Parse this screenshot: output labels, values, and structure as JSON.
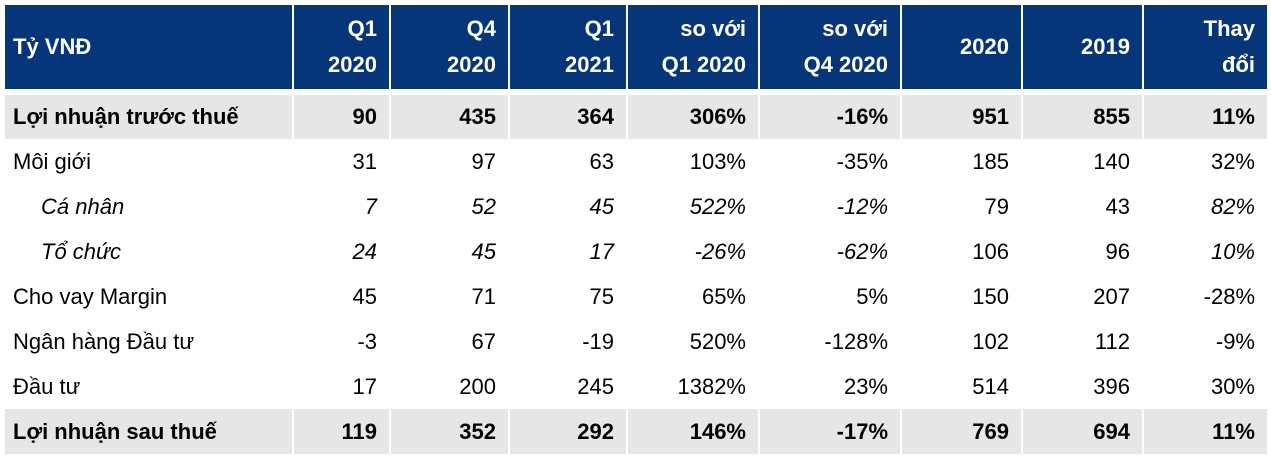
{
  "table": {
    "headers": [
      [
        "Tỷ VNĐ"
      ],
      [
        "Q1",
        "2020"
      ],
      [
        "Q4",
        "2020"
      ],
      [
        "Q1",
        "2021"
      ],
      [
        "so với",
        "Q1 2020"
      ],
      [
        "so với",
        "Q4 2020"
      ],
      [
        "2020"
      ],
      [
        "2019"
      ],
      [
        "Thay",
        "đổi"
      ]
    ],
    "rows": [
      {
        "cells": [
          "Lợi nhuận trước thuế",
          "90",
          "435",
          "364",
          "306%",
          "-16%",
          "951",
          "855",
          "11%"
        ]
      },
      {
        "cells": [
          "Môi giới",
          "31",
          "97",
          "63",
          "103%",
          "-35%",
          "185",
          "140",
          "32%"
        ]
      },
      {
        "cells": [
          "Cá nhân",
          "7",
          "52",
          "45",
          "522%",
          "-12%",
          "79",
          "43",
          "82%"
        ]
      },
      {
        "cells": [
          "Tổ chức",
          "24",
          "45",
          "17",
          "-26%",
          "-62%",
          "106",
          "96",
          "10%"
        ]
      },
      {
        "cells": [
          "Cho vay Margin",
          "45",
          "71",
          "75",
          "65%",
          "5%",
          "150",
          "207",
          "-28%"
        ]
      },
      {
        "cells": [
          "Ngân hàng Đầu tư",
          "-3",
          "67",
          "-19",
          "520%",
          "-128%",
          "102",
          "112",
          "-9%"
        ]
      },
      {
        "cells": [
          "Đầu tư",
          "17",
          "200",
          "245",
          "1382%",
          "23%",
          "514",
          "396",
          "30%"
        ]
      },
      {
        "cells": [
          "Lợi nhuận sau thuế",
          "119",
          "352",
          "292",
          "146%",
          "-17%",
          "769",
          "694",
          "11%"
        ]
      }
    ]
  }
}
